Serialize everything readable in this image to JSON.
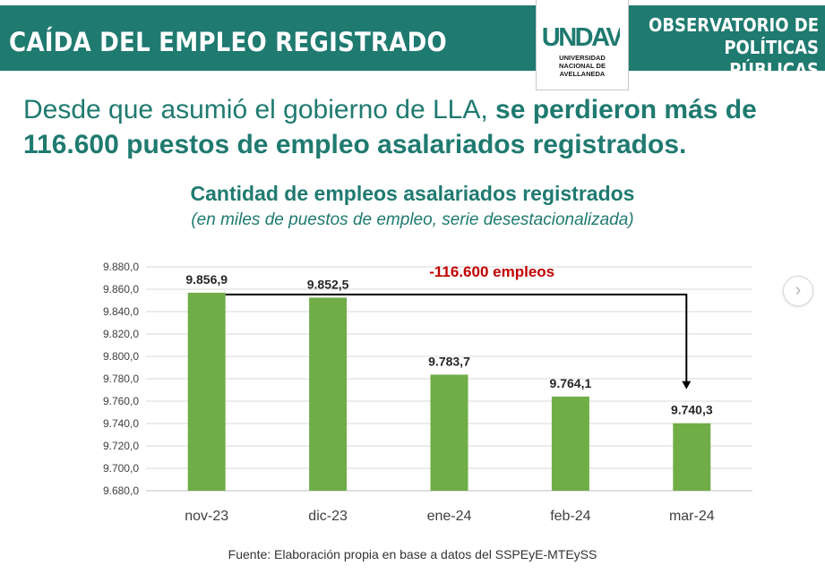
{
  "header": {
    "title": "CAÍDA DEL EMPLEO REGISTRADO",
    "logo": {
      "mark": "UNDAV",
      "lines": [
        "UNIVERSIDAD",
        "NACIONAL DE",
        "AVELLANEDA"
      ]
    },
    "observatorio": [
      "OBSERVATORIO DE",
      "POLÍTICAS PÚBLICAS"
    ]
  },
  "headline": {
    "normal": "Desde que asumió el gobierno de LLA, ",
    "bold": "se perdieron más de 116.600 puestos de empleo asalariados registrados."
  },
  "chart_data": {
    "type": "bar",
    "title": "Cantidad de empleos asalariados registrados",
    "subtitle": "(en miles de puestos de empleo, serie desestacionalizada)",
    "categories": [
      "nov-23",
      "dic-23",
      "ene-24",
      "feb-24",
      "mar-24"
    ],
    "values": [
      9856.9,
      9852.5,
      9783.7,
      9764.1,
      9740.3
    ],
    "value_labels": [
      "9.856,9",
      "9.852,5",
      "9.783,7",
      "9.764,1",
      "9.740,3"
    ],
    "ylim": [
      9680,
      9880
    ],
    "yticks": [
      9680,
      9700,
      9720,
      9740,
      9760,
      9780,
      9800,
      9820,
      9840,
      9860,
      9880
    ],
    "ytick_labels": [
      "9.680,0",
      "9.700,0",
      "9.720,0",
      "9.740,0",
      "9.760,0",
      "9.780,0",
      "9.800,0",
      "9.820,0",
      "9.840,0",
      "9.860,0",
      "9.880,0"
    ],
    "annotation": "-116.600 empleos",
    "xlabel": "",
    "ylabel": "",
    "bar_color": "#70ad47",
    "annotation_color": "#c00000"
  },
  "source": "Fuente: Elaboración propia en base a datos del SSPEyE-MTEySS",
  "nav": {
    "next_icon": "›"
  },
  "colors": {
    "brand": "#1f7a70",
    "white": "#ffffff"
  }
}
